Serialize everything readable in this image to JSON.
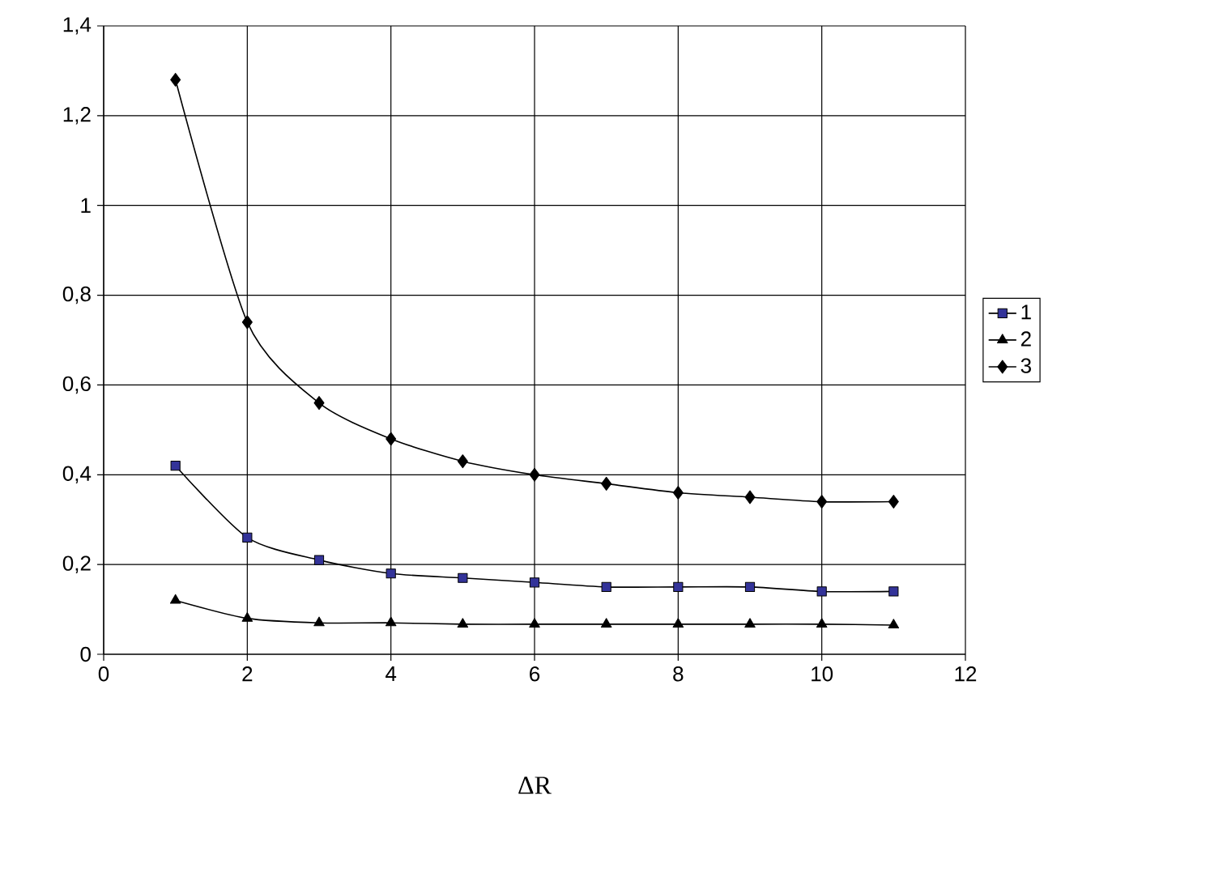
{
  "chart_data": {
    "type": "line",
    "xlabel": "ΔR",
    "x": [
      1,
      2,
      3,
      4,
      5,
      6,
      7,
      8,
      9,
      10,
      11
    ],
    "series": [
      {
        "name": "1",
        "color": "#333399",
        "marker": "square",
        "values": [
          0.42,
          0.26,
          0.21,
          0.18,
          0.17,
          0.16,
          0.15,
          0.15,
          0.15,
          0.14,
          0.14
        ]
      },
      {
        "name": "2",
        "color": "#000000",
        "marker": "triangle",
        "values": [
          0.12,
          0.08,
          0.07,
          0.07,
          0.067,
          0.067,
          0.067,
          0.067,
          0.067,
          0.067,
          0.065
        ]
      },
      {
        "name": "3",
        "color": "#000000",
        "marker": "diamond",
        "values": [
          1.28,
          0.74,
          0.56,
          0.48,
          0.43,
          0.4,
          0.38,
          0.36,
          0.35,
          0.34,
          0.34
        ]
      }
    ],
    "xlim": [
      0,
      12
    ],
    "xticks": [
      0,
      2,
      4,
      6,
      8,
      10,
      12
    ],
    "ylim": [
      0,
      1.4
    ],
    "yticks": [
      0,
      {
        "value": 0.2,
        "label": "0,2"
      },
      {
        "value": 0.4,
        "label": "0,4"
      },
      {
        "value": 0.6,
        "label": "0,6"
      },
      {
        "value": 0.8,
        "label": "0,8"
      },
      1,
      {
        "value": 1.2,
        "label": "1,2"
      },
      {
        "value": 1.4,
        "label": "1,4"
      }
    ],
    "grid": true,
    "legend": "right"
  }
}
